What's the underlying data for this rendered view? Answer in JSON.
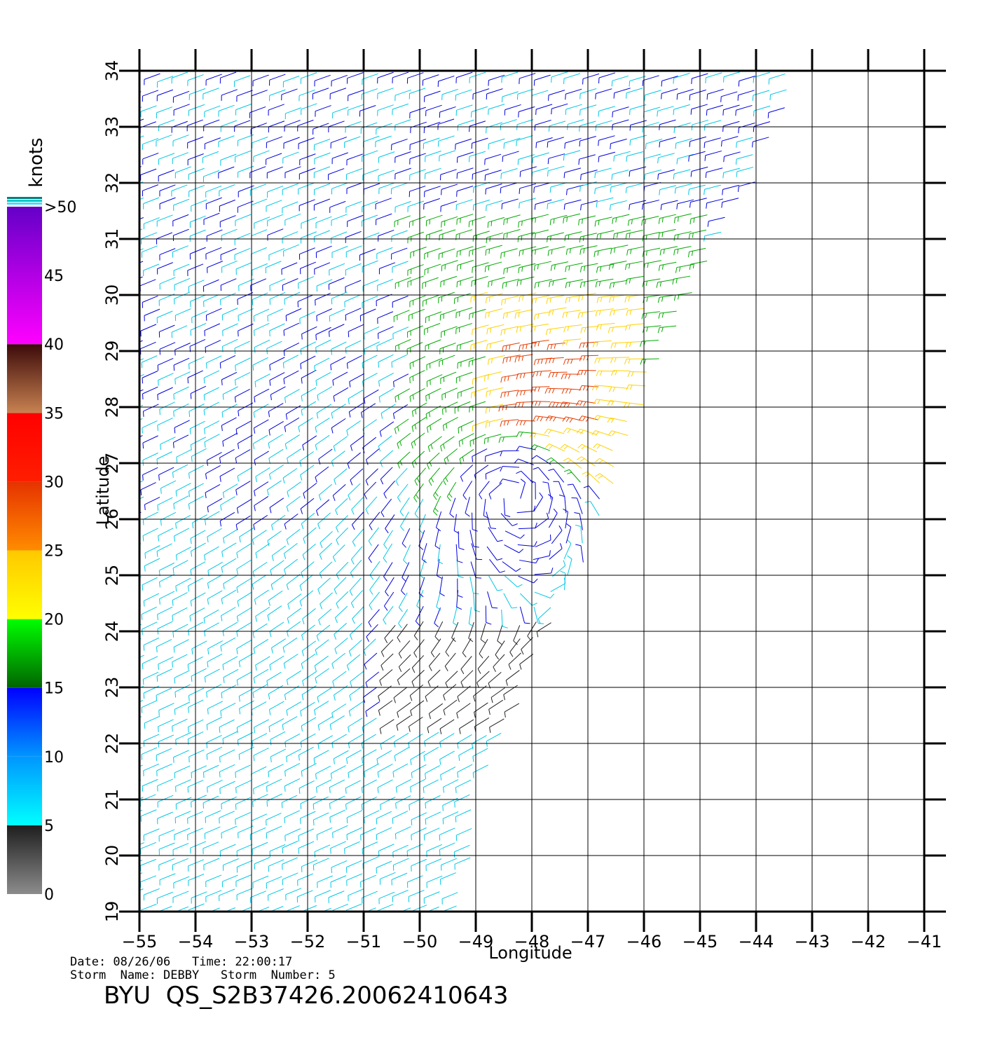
{
  "map": {
    "axes": {
      "xlabel": "Longitude",
      "ylabel": "Latitude",
      "lon_range": [
        -55,
        -41
      ],
      "lat_range": [
        19,
        34
      ],
      "lon_ticks": [
        "−55",
        "−54",
        "−53",
        "−52",
        "−51",
        "−50",
        "−49",
        "−48",
        "−47",
        "−46",
        "−45",
        "−44",
        "−43",
        "−42",
        "−41"
      ],
      "lat_ticks": [
        "19",
        "20",
        "21",
        "22",
        "23",
        "24",
        "25",
        "26",
        "27",
        "28",
        "29",
        "30",
        "31",
        "32",
        "33",
        "34"
      ]
    },
    "colorbar": {
      "title": "knots",
      "labels": [
        "0",
        "5",
        "10",
        "15",
        "20",
        "25",
        "30",
        "35",
        "40",
        "45",
        ">50"
      ],
      "bands": [
        {
          "range": [
            0,
            5
          ],
          "color_from": "#8c8c8c",
          "color_to": "#1e1e1e"
        },
        {
          "range": [
            5,
            10
          ],
          "color_from": "#00ffff",
          "color_to": "#0096ff"
        },
        {
          "range": [
            10,
            15
          ],
          "color_from": "#0096ff",
          "color_to": "#0000ff"
        },
        {
          "range": [
            15,
            20
          ],
          "color_from": "#006400",
          "color_to": "#00ff00"
        },
        {
          "range": [
            20,
            25
          ],
          "color_from": "#ffff00",
          "color_to": "#ffc800"
        },
        {
          "range": [
            25,
            30
          ],
          "color_from": "#ff8c00",
          "color_to": "#e63200"
        },
        {
          "range": [
            30,
            35
          ],
          "color_from": "#ff1e00",
          "color_to": "#ff0000"
        },
        {
          "range": [
            35,
            40
          ],
          "color_from": "#c88250",
          "color_to": "#3c0a0a"
        },
        {
          "range": [
            40,
            50
          ],
          "color_from": "#ff00ff",
          "color_to": "#6400c8"
        }
      ]
    },
    "wind_field": {
      "description_colors": {
        "calm": "#222222",
        "light": "#00c8e6",
        "moderate": "#0000dc",
        "fresh": "#00aa00",
        "strong": "#ffd200",
        "gale": "#e63c00"
      },
      "vortex_center": {
        "lon": -48.3,
        "lat": 26.4
      },
      "swath_edges": [
        [
          -55,
          34
        ],
        [
          -43.2,
          34
        ],
        [
          -44,
          32
        ],
        [
          -44.6,
          31
        ],
        [
          -46,
          28
        ],
        [
          -46.4,
          27
        ],
        [
          -47.4,
          24.5
        ],
        [
          -48.2,
          22.8
        ],
        [
          -48.8,
          21.5
        ],
        [
          -48.8,
          20.5
        ],
        [
          -49.3,
          19
        ],
        [
          -55,
          19
        ]
      ]
    },
    "footer": {
      "date_line": "Date: 08/26/06   Time: 22:00:17",
      "storm_line": "Storm  Name: DEBBY   Storm  Number: 5",
      "product": "BYU  QS_S2B37426.20062410643"
    }
  }
}
